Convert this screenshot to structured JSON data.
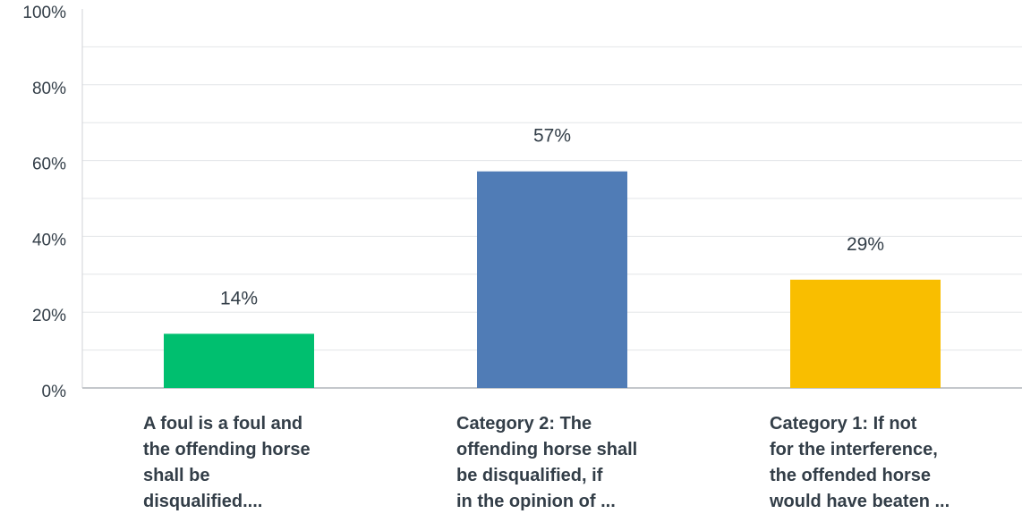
{
  "chart_data": {
    "type": "bar",
    "categories": [
      [
        "A foul is a foul and",
        "the offending horse",
        "shall be",
        "disqualified...."
      ],
      [
        "Category 2: The",
        "offending horse shall",
        "be disqualified, if",
        "in the opinion of ..."
      ],
      [
        "Category 1: If not",
        "for the interference,",
        "the offended horse",
        "would have beaten ..."
      ]
    ],
    "values": [
      14.29,
      57.14,
      28.57
    ],
    "value_labels": [
      "14%",
      "57%",
      "29%"
    ],
    "colors": [
      "#00bf6f",
      "#507cb6",
      "#f9be00"
    ],
    "ylim": [
      0,
      100
    ],
    "yticks": [
      0,
      20,
      40,
      60,
      80,
      100
    ],
    "ytick_labels": [
      "0%",
      "20%",
      "40%",
      "60%",
      "80%",
      "100%"
    ],
    "grid": true,
    "title": "",
    "xlabel": "",
    "ylabel": ""
  }
}
